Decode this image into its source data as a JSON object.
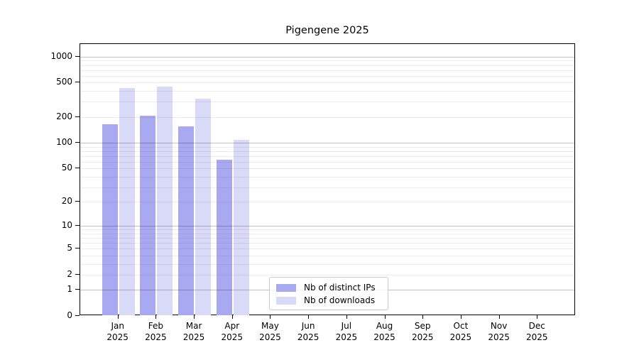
{
  "chart_data": {
    "type": "bar",
    "title": "Pigengene 2025",
    "categories": [
      "Jan",
      "Feb",
      "Mar",
      "Apr",
      "May",
      "Jun",
      "Jul",
      "Aug",
      "Sep",
      "Oct",
      "Nov",
      "Dec"
    ],
    "category_year": "2025",
    "series": [
      {
        "name": "Nb of distinct IPs",
        "color": "#a9a9f1",
        "values": [
          165,
          205,
          154,
          63,
          null,
          null,
          null,
          null,
          null,
          null,
          null,
          null
        ]
      },
      {
        "name": "Nb of downloads",
        "color": "#d9d9f8",
        "values": [
          435,
          453,
          326,
          108,
          null,
          null,
          null,
          null,
          null,
          null,
          null,
          null
        ]
      }
    ],
    "y_scale": "log10(1+y)",
    "y_ticks": [
      0,
      1,
      2,
      5,
      10,
      20,
      50,
      100,
      200,
      500,
      1000
    ],
    "ylim": [
      0,
      1400
    ],
    "grid": "horizontal",
    "legend_position": "lower-center"
  },
  "colors": {
    "minor_grid": "rgba(0,0,0,0.07)",
    "major_grid": "rgba(0,0,0,0.24)",
    "axis": "#000000",
    "legend_border": "#cccccc"
  }
}
